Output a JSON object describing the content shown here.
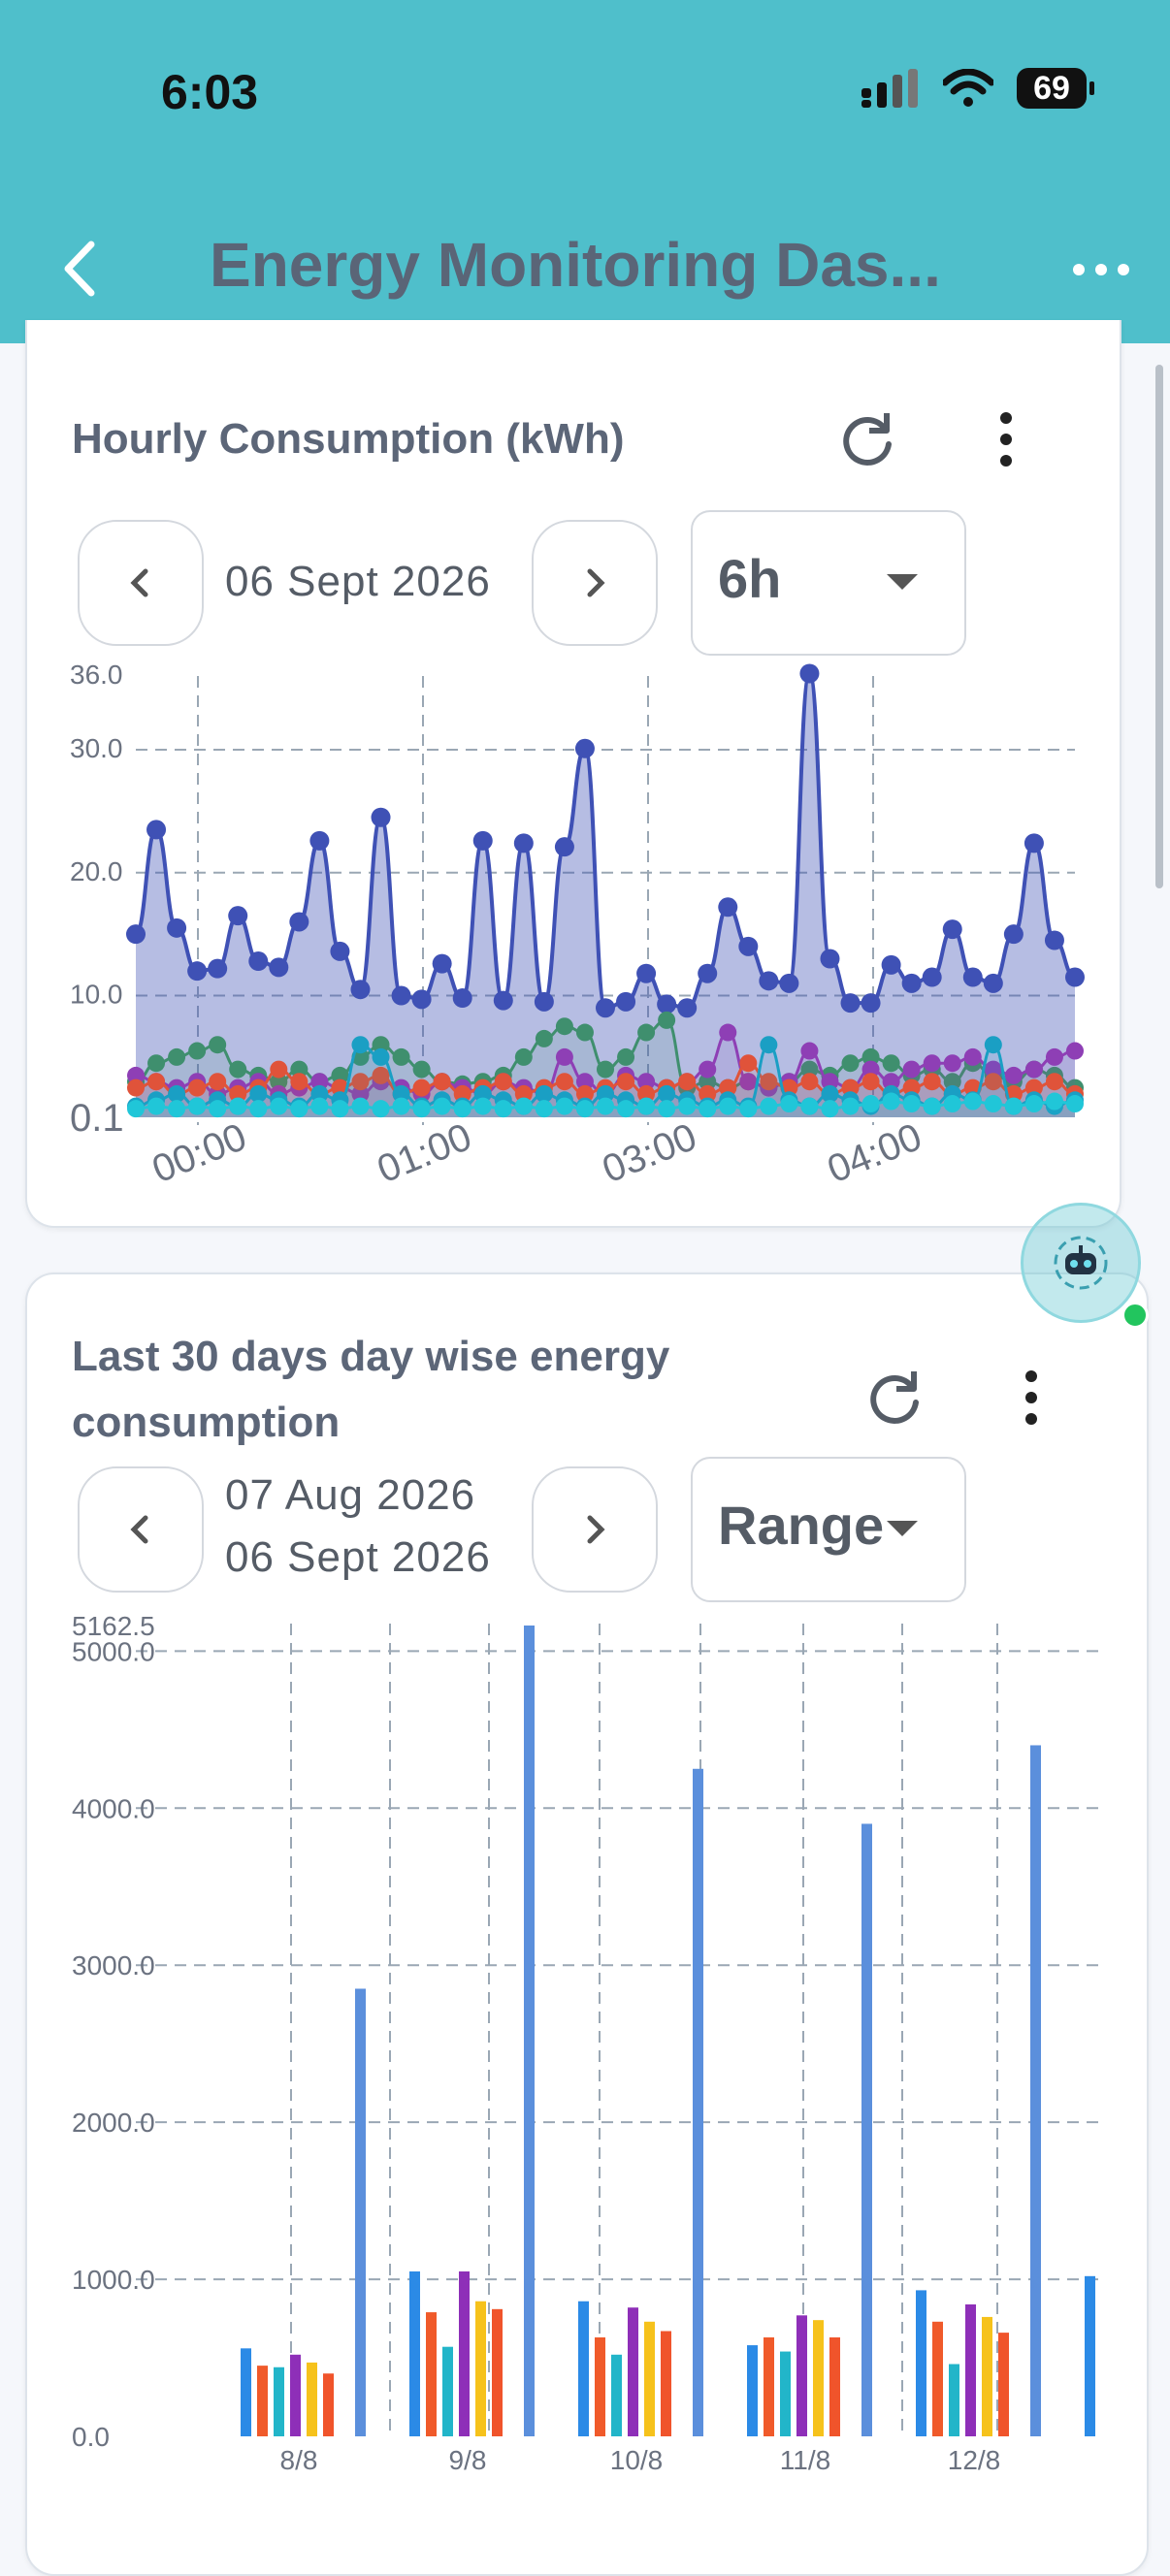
{
  "status": {
    "time": "6:03",
    "battery": "69"
  },
  "app_bar": {
    "title": "Energy Monitoring Das..."
  },
  "card1": {
    "title": "Hourly Consumption (kWh)",
    "date": "06 Sept 2026",
    "select_value": "6h"
  },
  "card2": {
    "title_line1": "Last 30 days day wise energy",
    "title_line2": "consumption",
    "date_from": "07 Aug 2026",
    "date_to": "06 Sept 2026",
    "select_value": "Range"
  },
  "colors": {
    "accent": "#4fbfcb",
    "primary_series": "#3f51b5",
    "bar_primary": "#5b8fdc"
  },
  "chart_data": [
    {
      "type": "area",
      "y_tick_labels": [
        "0.1",
        "10.0",
        "20.0",
        "30.0",
        "36.0"
      ],
      "x_tick_labels": [
        "00:00",
        "01:00",
        "03:00",
        "04:00"
      ],
      "ylim": [
        0.1,
        36.0
      ],
      "grid": true,
      "series": [
        {
          "color": "#3f51b5",
          "values": [
            15,
            23.5,
            15.5,
            12,
            12.2,
            16.5,
            12.8,
            12.3,
            16,
            22.6,
            13.6,
            10.5,
            24.5,
            10,
            9.7,
            12.6,
            9.8,
            22.6,
            9.6,
            22.4,
            9.5,
            22.1,
            30.1,
            9,
            9.5,
            11.8,
            9.3,
            9,
            11.8,
            17.2,
            14,
            11.2,
            11,
            36.2,
            13,
            9.4,
            9.4,
            12.5,
            11,
            11.5,
            15.4,
            11.5,
            11,
            15,
            22.4,
            14.5,
            11.5
          ]
        },
        {
          "color": "#3f8f6e",
          "values": [
            3,
            4.5,
            5,
            5.5,
            6,
            4,
            3.5,
            3,
            4,
            3,
            3.5,
            5,
            6,
            5,
            4,
            3,
            2.8,
            3,
            3.5,
            5,
            6.5,
            7.5,
            7,
            4,
            5,
            7,
            8,
            2.5,
            3,
            2.5,
            3,
            2.5,
            3,
            4,
            3.5,
            4.5,
            5,
            4.5,
            3.5,
            4,
            3,
            4.5,
            3.5,
            3,
            4,
            3.5,
            2.5
          ]
        },
        {
          "color": "#8e3fb5",
          "values": [
            3.5,
            3,
            2.5,
            3,
            2,
            2.5,
            3,
            2,
            2.5,
            3,
            2.5,
            2,
            3,
            2.5,
            2,
            3,
            2.5,
            2,
            3,
            2.5,
            2,
            5,
            3,
            2,
            3.5,
            3,
            2.5,
            3,
            4,
            7,
            3,
            2.5,
            3,
            5.5,
            3,
            2.5,
            4,
            3,
            4,
            4.5,
            4.5,
            5,
            4,
            3.5,
            4,
            5,
            5.5
          ]
        },
        {
          "color": "#e0533a",
          "values": [
            2.5,
            3,
            2,
            2.5,
            3,
            2,
            2.5,
            4,
            3,
            2,
            2.5,
            3,
            3.5,
            2,
            2.5,
            3,
            2,
            2.5,
            3,
            2,
            2.5,
            3,
            2,
            2.5,
            3,
            2,
            2.5,
            3,
            2,
            2.5,
            4.5,
            3,
            2.5,
            3,
            2,
            2.5,
            3,
            2,
            2.5,
            3,
            2,
            2.5,
            3,
            2,
            2.5,
            3,
            2
          ]
        },
        {
          "color": "#1a9fc4",
          "values": [
            1,
            1.5,
            2,
            1,
            1.5,
            1,
            2,
            1.5,
            1,
            2,
            1.5,
            6,
            5,
            2,
            1,
            1.5,
            1,
            2,
            1.5,
            1,
            2,
            1.5,
            1,
            2,
            1.5,
            1,
            2,
            1.5,
            1,
            1.5,
            1,
            6,
            1.5,
            1,
            2,
            1.5,
            1,
            2,
            1.5,
            1,
            2,
            1.5,
            6,
            1,
            1.5,
            1,
            1.5
          ]
        },
        {
          "color": "#20c6d8",
          "values": [
            0.8,
            1,
            0.8,
            1,
            0.8,
            1,
            0.8,
            1,
            0.8,
            1,
            0.8,
            1,
            0.8,
            1,
            0.8,
            1,
            0.8,
            1,
            0.8,
            1,
            0.8,
            1,
            0.8,
            1,
            0.8,
            1,
            0.8,
            1,
            0.8,
            1,
            0.8,
            1,
            1.2,
            1,
            0.8,
            1,
            1.2,
            1.4,
            1.2,
            1,
            1.2,
            1.4,
            1.2,
            1,
            1.2,
            1.4,
            1.2
          ]
        }
      ]
    },
    {
      "type": "bar",
      "y_tick_labels": [
        "0.0",
        "1000.0",
        "2000.0",
        "3000.0",
        "4000.0",
        "5000.0",
        "5162.5"
      ],
      "categories": [
        "8/8",
        "9/8",
        "10/8",
        "11/8",
        "12/8"
      ],
      "ylim": [
        0,
        5162.5
      ],
      "grid": true,
      "series_colors": [
        "#2b8ae6",
        "#f05a2a",
        "#22b5c9",
        "#8e2fb8",
        "#f6c21b",
        "#f0542b",
        "#5b8fdc"
      ],
      "groups": [
        [
          560,
          450,
          440,
          520,
          470,
          400,
          2850
        ],
        [
          1050,
          790,
          570,
          1050,
          860,
          810,
          5162.5
        ],
        [
          860,
          630,
          520,
          820,
          730,
          670,
          4250
        ],
        [
          580,
          630,
          540,
          770,
          740,
          630,
          3900
        ],
        [
          930,
          730,
          460,
          840,
          760,
          660,
          4400
        ]
      ],
      "partial_last_bar": 1020
    }
  ]
}
